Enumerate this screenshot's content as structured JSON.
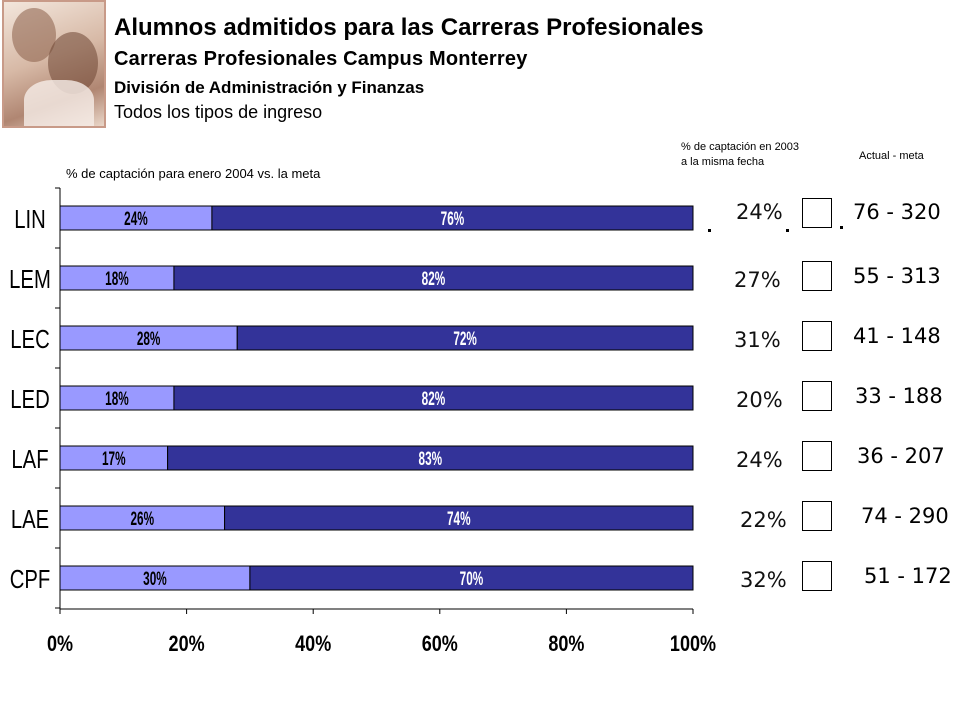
{
  "header": {
    "title": "Alumnos admitidos para las Carreras Profesionales",
    "subtitle": "Carreras Profesionales Campus Monterrey",
    "division": "División de Administración y Finanzas",
    "ingreso": "Todos los tipos de ingreso"
  },
  "columns": {
    "prev_header_line1": "% de captación en 2003",
    "prev_header_line2": "a la misma fecha",
    "actual_meta_header": "Actual -  meta"
  },
  "colors": {
    "captado": "#9999ff",
    "faltante": "#333399",
    "border": "#000000"
  },
  "chart_data": {
    "type": "bar",
    "stacked": "percent",
    "orientation": "horizontal",
    "title": "% de captación para enero 2004 vs. la meta",
    "categories": [
      "LIN",
      "LEM",
      "LEC",
      "LED",
      "LAF",
      "LAE",
      "CPF"
    ],
    "series": [
      {
        "values": [
          24,
          18,
          28,
          18,
          17,
          26,
          30
        ],
        "labels": [
          "24%",
          "18%",
          "28%",
          "18%",
          "17%",
          "26%",
          "30%"
        ]
      },
      {
        "values": [
          76,
          82,
          72,
          82,
          83,
          74,
          70
        ],
        "labels": [
          "76%",
          "82%",
          "72%",
          "82%",
          "83%",
          "74%",
          "70%"
        ]
      }
    ],
    "x_ticks": [
      "0%",
      "20%",
      "40%",
      "60%",
      "80%",
      "100%"
    ],
    "xlim": [
      0,
      100
    ]
  },
  "rows": [
    {
      "prev": "24%",
      "actual_meta": "76 - 320"
    },
    {
      "prev": "27%",
      "actual_meta": "55 - 313"
    },
    {
      "prev": "31%",
      "actual_meta": "41 - 148"
    },
    {
      "prev": "20%",
      "actual_meta": "33 - 188"
    },
    {
      "prev": "24%",
      "actual_meta": "36 - 207"
    },
    {
      "prev": "22%",
      "actual_meta": "74 - 290"
    },
    {
      "prev": "32%",
      "actual_meta": "51 - 172"
    }
  ]
}
